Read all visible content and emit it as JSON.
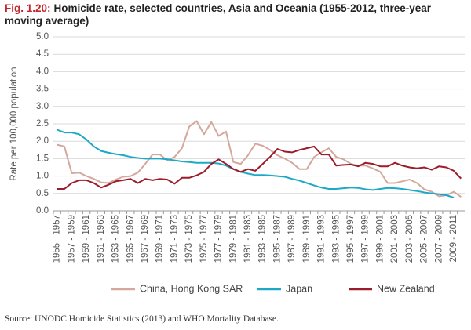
{
  "chart_data": {
    "type": "line",
    "figure_label": "Fig. 1.20:",
    "title": "Homicide rate, selected countries, Asia and Oceania (1955-2012, three-year moving average)",
    "y_label": "Rate per 100,000 population",
    "source": "Source: UNODC Homicide Statistics (2013) and WHO Mortality Database.",
    "categories": [
      "1955 - 1957",
      null,
      "1957 - 1959",
      null,
      "1959 - 1961",
      null,
      "1961 - 1963",
      null,
      "1963 - 1965",
      null,
      "1965 - 1967",
      null,
      "1967 - 1969",
      null,
      "1969 - 1971",
      null,
      "1971 - 1973",
      null,
      "1973 - 1975",
      null,
      "1975 - 1977",
      null,
      "1977 - 1979",
      null,
      "1979 - 1981",
      null,
      "1981 - 1983",
      null,
      "1983 - 1985",
      null,
      "1985 - 1987",
      null,
      "1987 - 1989",
      null,
      "1989 - 1991",
      null,
      "1991 - 1993",
      null,
      "1993 - 1995",
      null,
      "1995 - 1997",
      null,
      "1997 - 1999",
      null,
      "1999 - 2001",
      null,
      "2001 - 2003",
      null,
      "2003 - 2005",
      null,
      "2005 - 2007",
      null,
      "2007 - 2009",
      null,
      "2009 - 2011",
      null
    ],
    "series": [
      {
        "name": "China, Hong Kong SAR",
        "color": "#d4a89c",
        "values": [
          1.9,
          1.85,
          1.08,
          1.1,
          1.0,
          0.92,
          0.82,
          0.8,
          0.9,
          0.98,
          1.0,
          1.1,
          1.35,
          1.62,
          1.62,
          1.45,
          1.55,
          1.8,
          2.42,
          2.58,
          2.2,
          2.55,
          2.15,
          2.28,
          1.4,
          1.35,
          1.6,
          1.93,
          1.87,
          1.75,
          1.6,
          1.5,
          1.38,
          1.2,
          1.2,
          1.55,
          1.68,
          1.8,
          1.55,
          1.48,
          1.35,
          1.3,
          1.3,
          1.22,
          1.12,
          0.8,
          0.8,
          0.85,
          0.9,
          0.8,
          0.62,
          0.55,
          0.42,
          0.45,
          0.55,
          0.4
        ]
      },
      {
        "name": "Japan",
        "color": "#1ba9c6",
        "values": [
          2.33,
          2.25,
          2.25,
          2.2,
          2.05,
          1.85,
          1.72,
          1.67,
          1.63,
          1.6,
          1.55,
          1.52,
          1.5,
          1.5,
          1.5,
          1.48,
          1.45,
          1.42,
          1.4,
          1.38,
          1.38,
          1.38,
          1.36,
          1.3,
          1.2,
          1.12,
          1.07,
          1.03,
          1.03,
          1.02,
          1.0,
          0.98,
          0.92,
          0.87,
          0.8,
          0.73,
          0.67,
          0.63,
          0.63,
          0.65,
          0.67,
          0.66,
          0.62,
          0.6,
          0.63,
          0.66,
          0.65,
          0.63,
          0.6,
          0.57,
          0.53,
          0.5,
          0.48,
          0.45,
          0.38,
          null
        ]
      },
      {
        "name": "New Zealand",
        "color": "#9c1c2c",
        "values": [
          0.63,
          0.63,
          0.8,
          0.88,
          0.88,
          0.8,
          0.67,
          0.75,
          0.85,
          0.88,
          0.92,
          0.8,
          0.92,
          0.88,
          0.92,
          0.9,
          0.78,
          0.95,
          0.95,
          1.02,
          1.12,
          1.35,
          1.48,
          1.35,
          1.2,
          1.12,
          1.2,
          1.15,
          1.35,
          1.55,
          1.78,
          1.7,
          1.68,
          1.75,
          1.8,
          1.85,
          1.62,
          1.62,
          1.3,
          1.32,
          1.33,
          1.28,
          1.38,
          1.35,
          1.28,
          1.28,
          1.38,
          1.3,
          1.25,
          1.22,
          1.25,
          1.18,
          1.28,
          1.25,
          1.15,
          0.93
        ]
      }
    ],
    "ylim": [
      0,
      5
    ],
    "yticks": [
      {
        "value": 0,
        "label": "0.0"
      },
      0.5,
      {
        "value": 1,
        "label": "1.0"
      },
      1.5,
      {
        "value": 2,
        "label": "2.0"
      },
      2.5,
      {
        "value": 3,
        "label": "3.0"
      },
      3.5,
      {
        "value": 4,
        "label": "4.0"
      },
      4.5,
      {
        "value": 5,
        "label": "5.0"
      }
    ],
    "grid": true,
    "legend": "bottom"
  }
}
